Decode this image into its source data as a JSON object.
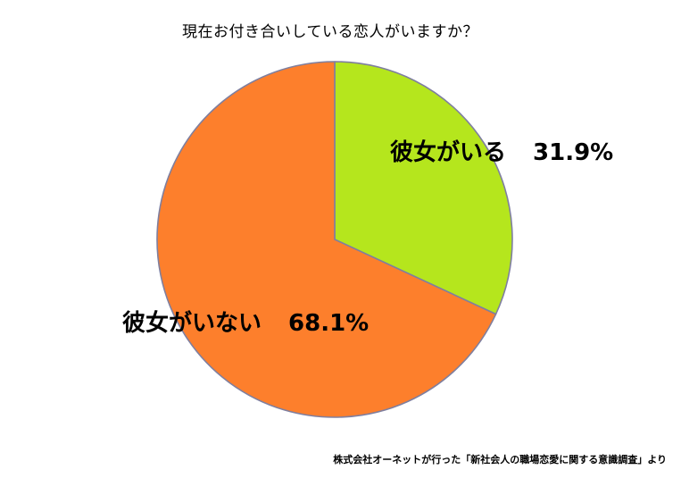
{
  "chart_data": {
    "type": "pie",
    "title": "現在お付き合いしている恋人がいますか？",
    "slices": [
      {
        "label": "彼女がいる",
        "value": 31.9,
        "value_text": "31.9%",
        "color": "#b5e61d"
      },
      {
        "label": "彼女がいない",
        "value": 68.1,
        "value_text": "68.1%",
        "color": "#fd7f2c"
      }
    ],
    "slice_border_color": "#7f7f9f",
    "source": "株式会社オーネットが行った「新社会人の職場恋愛に関する意識調査」より"
  }
}
